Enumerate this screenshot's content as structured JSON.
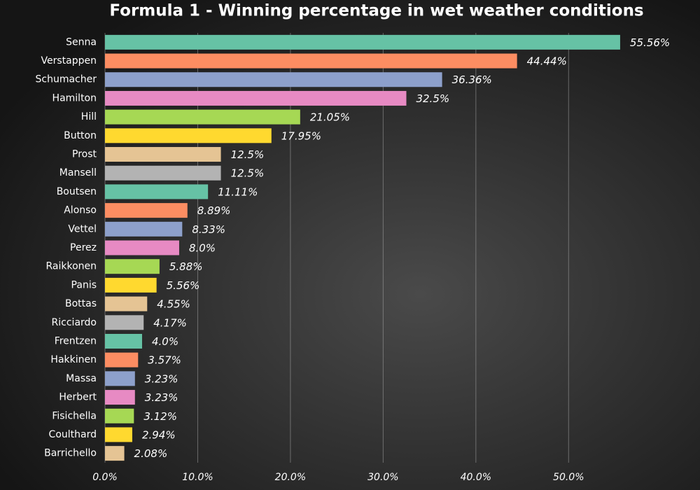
{
  "chart_data": {
    "type": "barh",
    "title": "Formula 1 - Winning percentage in wet weather conditions",
    "categories": [
      "Senna",
      "Verstappen",
      "Schumacher",
      "Hamilton",
      "Hill",
      "Button",
      "Prost",
      "Mansell",
      "Boutsen",
      "Alonso",
      "Vettel",
      "Perez",
      "Raikkonen",
      "Panis",
      "Bottas",
      "Ricciardo",
      "Frentzen",
      "Hakkinen",
      "Massa",
      "Herbert",
      "Fisichella",
      "Coulthard",
      "Barrichello"
    ],
    "values": [
      55.56,
      44.44,
      36.36,
      32.5,
      21.05,
      17.95,
      12.5,
      12.5,
      11.11,
      8.89,
      8.33,
      8.0,
      5.88,
      5.56,
      4.55,
      4.17,
      4.0,
      3.57,
      3.23,
      3.23,
      3.12,
      2.94,
      2.08
    ],
    "value_labels": [
      "55.56%",
      "44.44%",
      "36.36%",
      "32.5%",
      "21.05%",
      "17.95%",
      "12.5%",
      "12.5%",
      "11.11%",
      "8.89%",
      "8.33%",
      "8.0%",
      "5.88%",
      "5.56%",
      "4.55%",
      "4.17%",
      "4.0%",
      "3.57%",
      "3.23%",
      "3.23%",
      "3.12%",
      "2.94%",
      "2.08%"
    ],
    "colors": [
      "#66c2a5",
      "#fc8d62",
      "#8da0cb",
      "#e78ac3",
      "#a6d854",
      "#ffd92f",
      "#e5c494",
      "#b3b3b3"
    ],
    "xlim": [
      0,
      57
    ],
    "xticks": [
      {
        "value": 0,
        "label": "0.0%"
      },
      {
        "value": 10,
        "label": "10.0%"
      },
      {
        "value": 20,
        "label": "20.0%"
      },
      {
        "value": 30,
        "label": "30.0%"
      },
      {
        "value": 40,
        "label": "40.0%"
      },
      {
        "value": 50,
        "label": "50.0%"
      }
    ],
    "grid": true
  }
}
